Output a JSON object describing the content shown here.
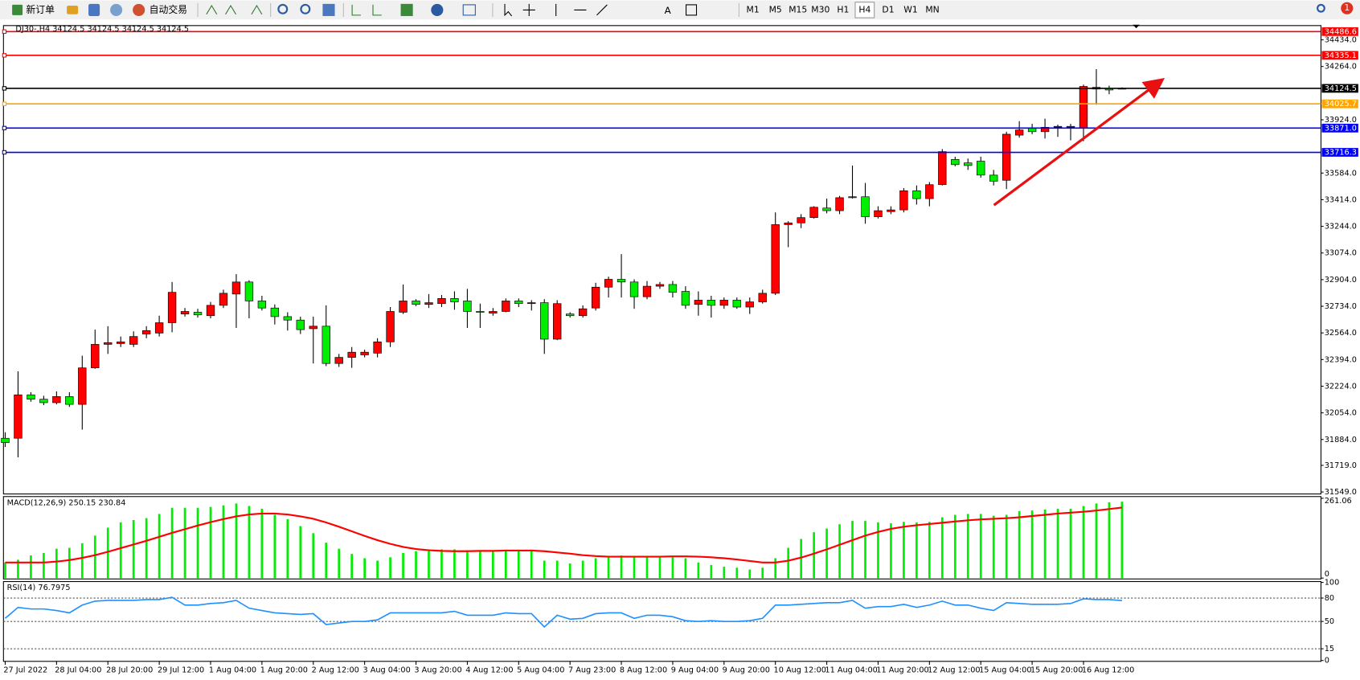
{
  "toolbar": {
    "buttons": [
      "新订单",
      "自动交易"
    ],
    "timeframes": [
      "M1",
      "M5",
      "M15",
      "M30",
      "H1",
      "H4",
      "D1",
      "W1",
      "MN"
    ],
    "active_timeframe": "H4",
    "notifications": "1"
  },
  "chart_data": [
    {
      "type": "candlestick",
      "title": "DJ30-,H4  34124.5 34124.5 34124.5 34124.5",
      "categories": [
        "27 Jul 2022",
        null,
        null,
        null,
        "28 Jul 04:00",
        null,
        null,
        null,
        "28 Jul 20:00",
        null,
        null,
        null,
        "29 Jul 12:00",
        null,
        null,
        null,
        "1 Aug 04:00",
        null,
        null,
        null,
        "1 Aug 20:00",
        null,
        null,
        null,
        "2 Aug 12:00",
        null,
        null,
        null,
        "3 Aug 04:00",
        null,
        null,
        null,
        "3 Aug 20:00",
        null,
        null,
        null,
        "4 Aug 12:00",
        null,
        null,
        null,
        "5 Aug 04:00",
        null,
        null,
        null,
        "7 Aug 23:00",
        null,
        null,
        null,
        "8 Aug 12:00",
        null,
        null,
        null,
        "9 Aug 04:00",
        null,
        null,
        null,
        "9 Aug 20:00",
        null,
        null,
        null,
        "10 Aug 12:00",
        null,
        null,
        null,
        "11 Aug 04:00",
        null,
        null,
        null,
        "11 Aug 20:00",
        null,
        null,
        null,
        "12 Aug 12:00",
        null,
        null,
        null,
        "15 Aug 04:00",
        null,
        null,
        null,
        "15 Aug 20:00",
        null,
        null,
        null,
        "16 Aug 12:00",
        null,
        null,
        null
      ],
      "open": [
        31892,
        31892,
        32169,
        32141,
        32119,
        32158,
        32108,
        32341,
        32491,
        32496,
        32491,
        32557,
        32563,
        32629,
        32685,
        32696,
        32674,
        32740,
        32812,
        32889,
        32768,
        32723,
        32668,
        32646,
        32591,
        32607,
        32369,
        32408,
        32424,
        32435,
        32507,
        32696,
        32768,
        32746,
        32751,
        32784,
        32768,
        32701,
        32690,
        32701,
        32768,
        32751,
        32757,
        32524,
        32685,
        32674,
        32723,
        32856,
        32906,
        32889,
        32795,
        32862,
        32873,
        32829,
        32746,
        32773,
        32740,
        32773,
        32729,
        32762,
        32817,
        33255,
        33266,
        33300,
        33361,
        33344,
        33427,
        33433,
        33305,
        33338,
        33349,
        33471,
        33421,
        33510,
        33671,
        33649,
        33660,
        33571,
        33538,
        33826,
        33870,
        33848,
        33876,
        33876,
        33870,
        34131,
        34125,
        34125
      ],
      "high": [
        31930,
        32319,
        32186,
        32163,
        32191,
        32186,
        32419,
        32585,
        32607,
        32541,
        32574,
        32607,
        32674,
        32889,
        32723,
        32718,
        32762,
        32840,
        32939,
        32900,
        32801,
        32746,
        32696,
        32668,
        32668,
        32740,
        32430,
        32474,
        32457,
        32530,
        32729,
        32873,
        32779,
        32812,
        32806,
        32829,
        32845,
        32751,
        32723,
        32784,
        32784,
        32773,
        32779,
        32773,
        32696,
        32740,
        32884,
        32923,
        33067,
        32906,
        32895,
        32889,
        32895,
        32862,
        32829,
        32801,
        32790,
        32790,
        32790,
        32840,
        33333,
        33277,
        33322,
        33372,
        33421,
        33438,
        33632,
        33521,
        33372,
        33372,
        33488,
        33505,
        33527,
        33737,
        33688,
        33677,
        33688,
        33604,
        33848,
        33915,
        33898,
        33931,
        33893,
        33898,
        34148,
        34247,
        34142,
        34131
      ],
      "low": [
        31836,
        31770,
        32125,
        32103,
        32108,
        32092,
        31947,
        32335,
        32430,
        32474,
        32474,
        32530,
        32541,
        32568,
        32668,
        32662,
        32657,
        32723,
        32596,
        32657,
        32707,
        32618,
        32579,
        32557,
        32369,
        32352,
        32347,
        32341,
        32408,
        32408,
        32474,
        32685,
        32735,
        32723,
        32729,
        32712,
        32596,
        32596,
        32674,
        32696,
        32729,
        32707,
        32430,
        32518,
        32662,
        32662,
        32707,
        32790,
        32790,
        32718,
        32779,
        32845,
        32790,
        32718,
        32674,
        32662,
        32718,
        32718,
        32685,
        32751,
        32806,
        33111,
        33233,
        33294,
        33327,
        33322,
        33421,
        33261,
        33294,
        33322,
        33333,
        33383,
        33372,
        33505,
        33627,
        33604,
        33555,
        33505,
        33482,
        33810,
        33832,
        33804,
        33815,
        33793,
        33787,
        34020,
        34087,
        34120
      ],
      "close": [
        31864,
        32169,
        32141,
        32119,
        32158,
        32108,
        32341,
        32491,
        32502,
        32507,
        32541,
        32579,
        32629,
        32823,
        32701,
        32679,
        32740,
        32817,
        32889,
        32768,
        32723,
        32668,
        32646,
        32585,
        32607,
        32369,
        32408,
        32441,
        32441,
        32507,
        32701,
        32768,
        32746,
        32757,
        32784,
        32762,
        32701,
        32696,
        32701,
        32768,
        32751,
        32757,
        32524,
        32751,
        32674,
        32718,
        32856,
        32906,
        32889,
        32795,
        32862,
        32873,
        32823,
        32740,
        32773,
        32740,
        32773,
        32729,
        32762,
        32817,
        33255,
        33266,
        33300,
        33366,
        33344,
        33427,
        33433,
        33305,
        33344,
        33349,
        33471,
        33421,
        33510,
        33721,
        33638,
        33632,
        33571,
        33532,
        33832,
        33859,
        33848,
        33876,
        33882,
        33882,
        34137,
        34120,
        34114,
        34124.5
      ],
      "up_color": "#ff0000",
      "down_color": "#00ee00",
      "wick_color": "#000000",
      "ylim": [
        31542,
        34525
      ],
      "yticks": [
        {
          "value": 34434,
          "label": "34434.0"
        },
        {
          "value": 34264,
          "label": "34264.0"
        },
        {
          "value": 33924,
          "label": "33924.0"
        },
        {
          "value": 33584,
          "label": "33584.0"
        },
        {
          "value": 33414,
          "label": "33414.0"
        },
        {
          "value": 33244,
          "label": "33244.0"
        },
        {
          "value": 33074,
          "label": "33074.0"
        },
        {
          "value": 32904,
          "label": "32904.0"
        },
        {
          "value": 32734,
          "label": "32734.0"
        },
        {
          "value": 32564,
          "label": "32564.0"
        },
        {
          "value": 32394,
          "label": "32394.0"
        },
        {
          "value": 32224,
          "label": "32224.0"
        },
        {
          "value": 32054,
          "label": "32054.0"
        },
        {
          "value": 31884,
          "label": "31884.0"
        },
        {
          "value": 31719,
          "label": "31719.0"
        },
        {
          "value": 31549,
          "label": "31549.0"
        }
      ],
      "levels": [
        {
          "value": 34486.6,
          "label": "34486.6",
          "color": "#ff0000"
        },
        {
          "value": 34335.1,
          "label": "34335.1",
          "color": "#ff0000"
        },
        {
          "value": 34124.5,
          "label": "34124.5",
          "color": "#000000"
        },
        {
          "value": 34025.7,
          "label": "34025.7",
          "color": "#ffa500"
        },
        {
          "value": 33871,
          "label": "33871.0",
          "color": "#0000ff"
        },
        {
          "value": 33716.3,
          "label": "33716.3",
          "color": "#0000ff"
        }
      ]
    },
    {
      "type": "macd",
      "title": "MACD(12,26,9) 250.15 230.84",
      "ylim": [
        0,
        261.06
      ],
      "yticks": [
        0,
        261.06
      ],
      "series": [
        {
          "kind": "bar",
          "color": "#00ee00",
          "values": [
            51,
            60,
            74,
            82,
            96,
            99,
            114,
            139,
            165,
            182,
            190,
            196,
            210,
            230,
            230,
            230,
            233,
            238,
            244,
            236,
            227,
            207,
            193,
            170,
            147,
            116,
            96,
            79,
            65,
            57,
            68,
            82,
            88,
            94,
            94,
            94,
            91,
            88,
            88,
            91,
            91,
            91,
            57,
            57,
            48,
            57,
            65,
            71,
            74,
            71,
            71,
            71,
            71,
            65,
            51,
            43,
            37,
            34,
            28,
            34,
            65,
            99,
            128,
            150,
            162,
            176,
            187,
            187,
            182,
            179,
            184,
            182,
            184,
            199,
            207,
            210,
            210,
            204,
            207,
            219,
            221,
            224,
            227,
            227,
            236,
            244,
            248,
            250.15
          ]
        },
        {
          "kind": "line",
          "color": "#ff0000",
          "values": [
            51,
            51,
            51,
            51,
            54,
            59,
            66,
            75,
            86,
            98,
            110,
            122,
            135,
            148,
            160,
            172,
            183,
            193,
            202,
            208,
            211,
            211,
            208,
            202,
            194,
            182,
            168,
            153,
            138,
            124,
            112,
            102,
            95,
            91,
            89,
            88,
            88,
            89,
            89,
            90,
            90,
            90,
            88,
            84,
            80,
            75,
            72,
            70,
            70,
            70,
            70,
            70,
            71,
            71,
            70,
            68,
            65,
            61,
            56,
            51,
            51,
            57,
            67,
            80,
            94,
            109,
            124,
            139,
            151,
            161,
            168,
            173,
            177,
            181,
            185,
            189,
            192,
            194,
            196,
            199,
            203,
            207,
            211,
            214,
            217,
            221,
            226,
            230.84
          ]
        }
      ]
    },
    {
      "type": "line",
      "title": "RSI(14) 76.7975",
      "ylim": [
        0,
        100
      ],
      "yticks": [
        0,
        15,
        50,
        80,
        100
      ],
      "series": [
        {
          "color": "#1e90ff",
          "values": [
            54,
            68,
            66,
            66,
            64,
            61,
            71,
            76,
            77,
            77,
            77,
            78,
            78,
            81,
            71,
            71,
            73,
            74,
            77,
            67,
            64,
            61,
            60,
            59,
            60,
            46,
            48,
            50,
            50,
            52,
            61,
            61,
            61,
            61,
            61,
            63,
            58,
            58,
            58,
            61,
            60,
            60,
            43,
            58,
            53,
            54,
            60,
            61,
            61,
            54,
            58,
            58,
            56,
            51,
            50,
            51,
            50,
            50,
            51,
            54,
            71,
            71,
            72,
            73,
            74,
            74,
            77,
            67,
            69,
            69,
            72,
            68,
            71,
            76,
            71,
            71,
            67,
            64,
            74,
            73,
            72,
            72,
            72,
            73,
            79,
            78,
            78,
            76.7975
          ]
        }
      ]
    }
  ]
}
